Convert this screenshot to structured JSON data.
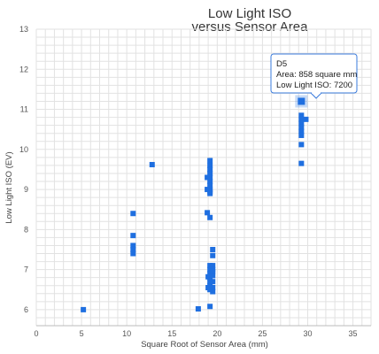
{
  "chart_data": {
    "type": "scatter",
    "title": "Low Light ISO",
    "subtitle": "versus Sensor Area",
    "xlabel": "Square Root of Sensor Area (mm)",
    "ylabel": "Low Light ISO (EV)",
    "xlim": [
      0,
      37
    ],
    "ylim": [
      5.6,
      13
    ],
    "xticks": [
      0,
      5,
      10,
      15,
      20,
      25,
      30,
      35
    ],
    "yticks": [
      6,
      7,
      8,
      9,
      10,
      11,
      12,
      13
    ],
    "grid": true,
    "marker_color": "#1f6fe0",
    "series": [
      {
        "points": [
          [
            5.2,
            6.0
          ],
          [
            10.7,
            8.4
          ],
          [
            10.7,
            7.85
          ],
          [
            10.7,
            7.6
          ],
          [
            10.7,
            7.5
          ],
          [
            10.7,
            7.4
          ],
          [
            12.8,
            9.62
          ],
          [
            17.9,
            6.02
          ],
          [
            18.9,
            9.3
          ],
          [
            18.9,
            9.0
          ],
          [
            18.9,
            8.42
          ],
          [
            19.2,
            9.72
          ],
          [
            19.2,
            9.6
          ],
          [
            19.2,
            9.5
          ],
          [
            19.2,
            9.4
          ],
          [
            19.2,
            9.3
          ],
          [
            19.2,
            9.2
          ],
          [
            19.2,
            9.1
          ],
          [
            19.2,
            9.0
          ],
          [
            19.2,
            8.95
          ],
          [
            19.2,
            8.9
          ],
          [
            19.2,
            8.3
          ],
          [
            19.2,
            7.1
          ],
          [
            19.2,
            7.0
          ],
          [
            19.2,
            6.9
          ],
          [
            19.2,
            6.8
          ],
          [
            19.2,
            6.7
          ],
          [
            19.2,
            6.6
          ],
          [
            19.2,
            6.5
          ],
          [
            19.2,
            6.08
          ],
          [
            19.5,
            7.5
          ],
          [
            19.5,
            7.35
          ],
          [
            19.5,
            7.1
          ],
          [
            19.5,
            7.0
          ],
          [
            19.5,
            6.95
          ],
          [
            19.5,
            6.85
          ],
          [
            19.5,
            6.7
          ],
          [
            19.5,
            6.55
          ],
          [
            19.5,
            6.45
          ],
          [
            19.0,
            6.82
          ],
          [
            19.0,
            6.55
          ],
          [
            29.3,
            11.2
          ],
          [
            29.3,
            10.85
          ],
          [
            29.3,
            10.75
          ],
          [
            29.3,
            10.65
          ],
          [
            29.3,
            10.55
          ],
          [
            29.3,
            10.45
          ],
          [
            29.3,
            10.35
          ],
          [
            29.3,
            10.12
          ],
          [
            29.3,
            9.65
          ],
          [
            29.8,
            10.75
          ]
        ]
      }
    ],
    "highlighted_point": [
      29.3,
      11.2
    ],
    "tooltip": {
      "name": "D5",
      "line1": "Area: 858 square mm",
      "line2": "Low Light ISO: 7200"
    }
  }
}
